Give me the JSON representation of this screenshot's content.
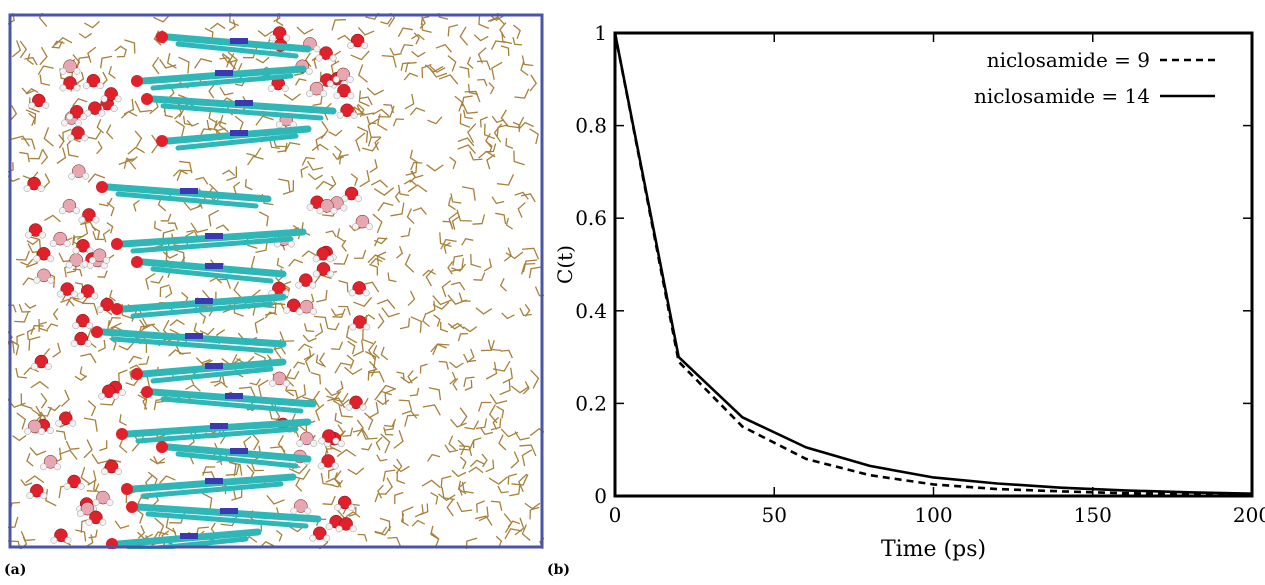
{
  "panels": {
    "a_label": "(a)",
    "b_label": "(b)"
  },
  "snapshot": {
    "frame_color": "#4a55a8",
    "solvent_color": "#a8803a",
    "carbon_color": "#2fb7b7",
    "nitrogen_color": "#3a3ab0",
    "oxygen_color": "#e0202a",
    "hydrogen_color": "#f2f2f2",
    "oxygen_pale_color": "#e7a7b0"
  },
  "chart_data": {
    "type": "line",
    "xlabel": "Time (ps)",
    "ylabel": "C(t)",
    "xlim": [
      0,
      200
    ],
    "ylim": [
      0,
      1
    ],
    "xticks": [
      0,
      50,
      100,
      150,
      200
    ],
    "yticks": [
      0,
      0.2,
      0.4,
      0.6,
      0.8,
      1
    ],
    "ytick_labels": [
      "0",
      "0.2",
      "0.4",
      "0.6",
      "0.8",
      "1"
    ],
    "xtick_labels": [
      "0",
      "50",
      "100",
      "150",
      "200"
    ],
    "legend_position": "top-right",
    "grid": false,
    "series": [
      {
        "name": "niclosamide = 9",
        "style": "dashed",
        "color": "#000000",
        "x": [
          0,
          20,
          40,
          60,
          80,
          100,
          120,
          140,
          160,
          180,
          200
        ],
        "y": [
          1.0,
          0.29,
          0.15,
          0.08,
          0.045,
          0.025,
          0.015,
          0.01,
          0.006,
          0.004,
          0.003
        ]
      },
      {
        "name": "niclosamide = 14",
        "style": "solid",
        "color": "#000000",
        "x": [
          0,
          20,
          40,
          60,
          80,
          100,
          120,
          140,
          160,
          180,
          200
        ],
        "y": [
          1.0,
          0.3,
          0.17,
          0.105,
          0.065,
          0.04,
          0.027,
          0.018,
          0.012,
          0.008,
          0.005
        ]
      }
    ]
  }
}
